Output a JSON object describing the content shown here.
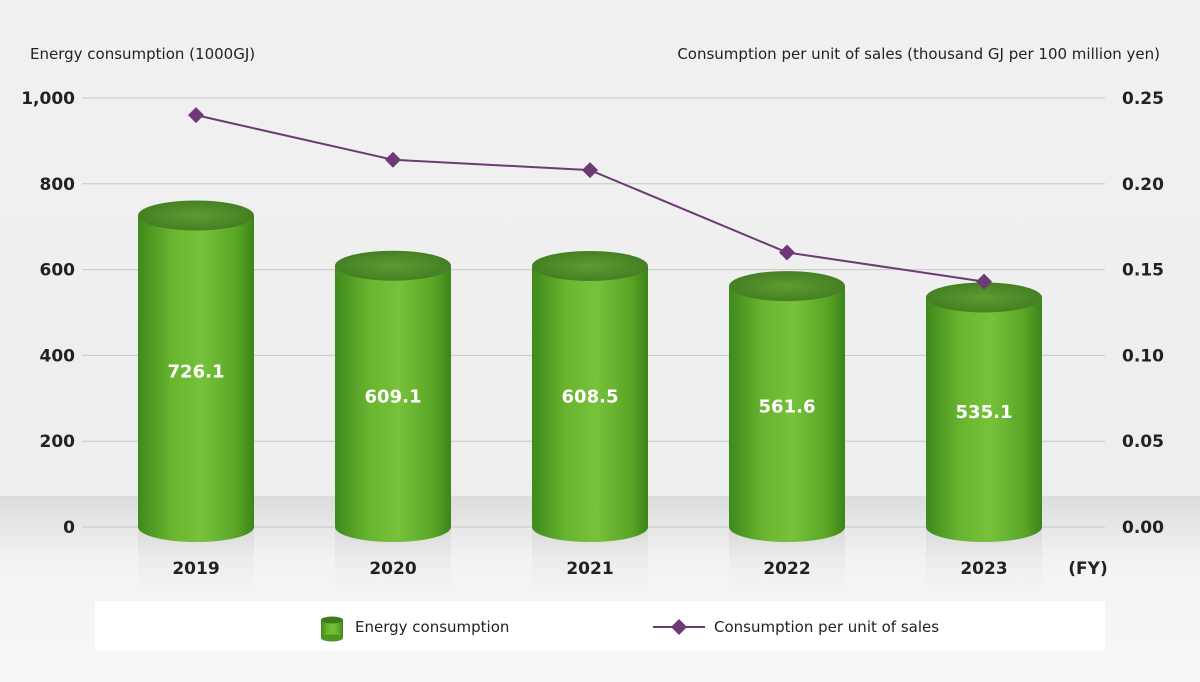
{
  "chart_data": {
    "type": "bar",
    "categories": [
      "2019",
      "2020",
      "2021",
      "2022",
      "2023"
    ],
    "x_unit_label": "(FY)",
    "series": [
      {
        "name": "Energy consumption",
        "type": "bar",
        "axis": "left",
        "values": [
          726.1,
          609.1,
          608.5,
          561.6,
          535.1
        ],
        "data_labels": [
          "726.1",
          "609.1",
          "608.5",
          "561.6",
          "535.1"
        ],
        "color": "#6ab52f"
      },
      {
        "name": "Consumption per unit of sales",
        "type": "line",
        "axis": "right",
        "marker": "diamond",
        "values": [
          0.24,
          0.214,
          0.208,
          0.16,
          0.143
        ],
        "color": "#6e3a76"
      }
    ],
    "ylabel_left": "Energy consumption (1000GJ)",
    "ylabel_right": "Consumption per unit of sales (thousand GJ per 100 million yen)",
    "ylim_left": [
      0,
      1000
    ],
    "ylim_right": [
      0,
      0.25
    ],
    "yticks_left": [
      "0",
      "200",
      "400",
      "600",
      "800",
      "1,000"
    ],
    "yticks_right": [
      "0.00",
      "0.05",
      "0.10",
      "0.15",
      "0.20",
      "0.25"
    ],
    "grid": true,
    "legend_position": "bottom"
  }
}
